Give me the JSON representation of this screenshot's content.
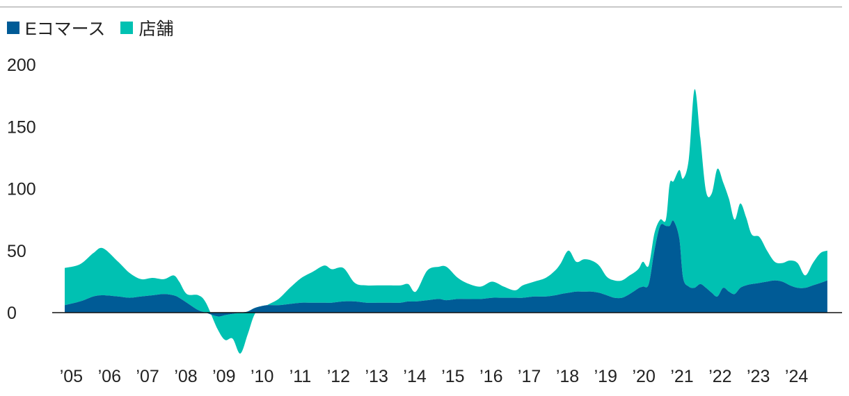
{
  "legend": [
    {
      "label": "Eコマース",
      "color": "#005b96"
    },
    {
      "label": "店舗",
      "color": "#00c1b2"
    }
  ],
  "chart_data": {
    "type": "area",
    "stacked": true,
    "x_tick_labels": [
      "’05",
      "’06",
      "’07",
      "’08",
      "’09",
      "’10",
      "’11",
      "’12",
      "’13",
      "’14",
      "’15",
      "’16",
      "’17",
      "’18",
      "’19",
      "’20",
      "’21",
      "’22",
      "’23",
      "’24"
    ],
    "y_ticks": [
      0,
      50,
      100,
      150,
      200
    ],
    "ylim": [
      -38,
      205
    ],
    "xlim": [
      2005.0,
      2025.0
    ],
    "grid": false,
    "legend_position": "top-left",
    "x": [
      2005.0,
      2005.4,
      2005.75,
      2006.0,
      2006.4,
      2006.7,
      2007.0,
      2007.3,
      2007.6,
      2007.85,
      2008.0,
      2008.2,
      2008.5,
      2008.7,
      2009.0,
      2009.2,
      2009.4,
      2009.6,
      2009.8,
      2010.0,
      2010.3,
      2010.6,
      2010.9,
      2011.2,
      2011.5,
      2011.8,
      2012.0,
      2012.3,
      2012.6,
      2012.9,
      2013.2,
      2013.5,
      2013.8,
      2014.0,
      2014.2,
      2014.5,
      2014.8,
      2015.0,
      2015.3,
      2015.6,
      2015.9,
      2016.2,
      2016.5,
      2016.8,
      2017.0,
      2017.3,
      2017.6,
      2017.85,
      2018.0,
      2018.2,
      2018.4,
      2018.6,
      2018.8,
      2019.0,
      2019.2,
      2019.4,
      2019.6,
      2019.8,
      2019.95,
      2020.05,
      2020.15,
      2020.3,
      2020.45,
      2020.6,
      2020.75,
      2020.85,
      2020.95,
      2021.1,
      2021.2,
      2021.35,
      2021.5,
      2021.65,
      2021.8,
      2021.95,
      2022.1,
      2022.25,
      2022.4,
      2022.55,
      2022.7,
      2022.85,
      2023.0,
      2023.2,
      2023.4,
      2023.6,
      2023.8,
      2024.0,
      2024.2,
      2024.4,
      2024.6,
      2024.8,
      2024.98
    ],
    "series": [
      {
        "name": "Eコマース",
        "values": [
          6,
          9,
          13,
          14,
          13,
          12,
          13,
          14,
          15,
          14,
          12,
          8,
          2,
          0,
          -3,
          -2,
          -1,
          0,
          1,
          4,
          6,
          6,
          7,
          8,
          8,
          8,
          8,
          9,
          9,
          8,
          8,
          8,
          8,
          9,
          9,
          10,
          11,
          10,
          11,
          11,
          11,
          12,
          12,
          12,
          12,
          13,
          13,
          14,
          15,
          16,
          17,
          17,
          17,
          16,
          14,
          12,
          12,
          15,
          18,
          20,
          21,
          23,
          50,
          70,
          70,
          70,
          74,
          60,
          28,
          21,
          20,
          23,
          20,
          16,
          13,
          20,
          17,
          15,
          20,
          22,
          23,
          24,
          25,
          26,
          25,
          22,
          20,
          20,
          22,
          24,
          26
        ]
      },
      {
        "name": "店舗",
        "values": [
          30,
          30,
          35,
          38,
          28,
          20,
          14,
          14,
          12,
          16,
          13,
          7,
          12,
          8,
          -10,
          -20,
          -20,
          -33,
          -18,
          -4,
          0,
          5,
          13,
          20,
          25,
          30,
          27,
          27,
          15,
          14,
          14,
          14,
          14,
          14,
          8,
          24,
          26,
          27,
          17,
          12,
          10,
          13,
          9,
          6,
          10,
          12,
          15,
          20,
          25,
          34,
          24,
          26,
          25,
          22,
          15,
          14,
          14,
          15,
          15,
          16,
          20,
          15,
          14,
          5,
          5,
          34,
          32,
          55,
          80,
          103,
          160,
          118,
          78,
          80,
          103,
          85,
          75,
          60,
          68,
          55,
          40,
          37,
          25,
          15,
          15,
          20,
          20,
          10,
          18,
          24,
          24
        ]
      }
    ]
  }
}
